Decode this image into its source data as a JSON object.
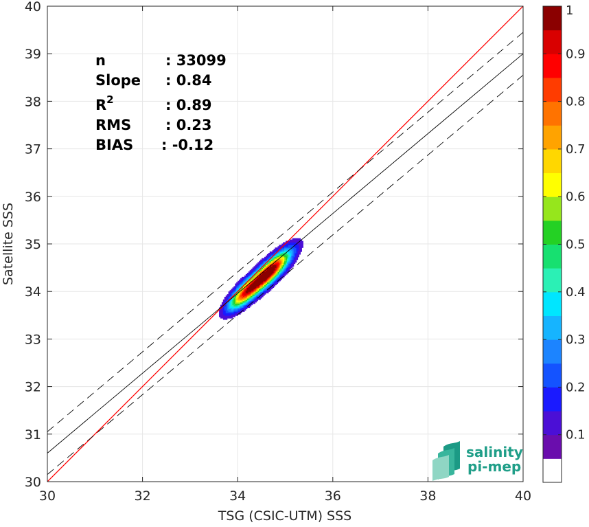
{
  "chart_data": {
    "type": "heatmap",
    "xlabel": "TSG (CSIC-UTM) SSS",
    "ylabel": "Satellite SSS",
    "xlim": [
      30,
      40
    ],
    "ylim": [
      30,
      40
    ],
    "xticks": [
      30,
      32,
      34,
      36,
      38,
      40
    ],
    "yticks": [
      30,
      31,
      32,
      33,
      34,
      35,
      36,
      37,
      38,
      39,
      40
    ],
    "grid": true,
    "stats": {
      "labels": [
        "n",
        "Slope",
        "R",
        "RMS",
        "BIAS"
      ],
      "superscript": "2",
      "values": [
        ": 33099",
        ": 0.84",
        ": 0.89",
        ": 0.23",
        ": -0.12"
      ]
    },
    "lines": {
      "one_to_one": {
        "slope": 1,
        "intercept": 0,
        "color": "#ff0000"
      },
      "regression": {
        "slope": 0.84,
        "intercept": 5.4
      },
      "band_offset": 0.45
    },
    "density_peaks": [
      {
        "x": 34.67,
        "y": 34.42,
        "weight": 1.0,
        "sx": 0.17,
        "sy": 0.17
      },
      {
        "x": 34.15,
        "y": 33.97,
        "weight": 0.7,
        "sx": 0.16,
        "sy": 0.14
      }
    ],
    "colorbar": {
      "ticks": [
        "0.1",
        "0.2",
        "0.3",
        "0.4",
        "0.5",
        "0.6",
        "0.7",
        "0.8",
        "0.9",
        "1"
      ],
      "colors": [
        "#ffffff",
        "#6a0dad",
        "#4b0fd6",
        "#1a1aff",
        "#1453ff",
        "#1c84ff",
        "#16b4ff",
        "#00e6ff",
        "#2bf0b5",
        "#17e070",
        "#24d124",
        "#96e61c",
        "#ffff00",
        "#ffd700",
        "#ffa300",
        "#ff7300",
        "#ff3c00",
        "#ff0000",
        "#d90000",
        "#8b0000"
      ]
    },
    "logo": {
      "line1": "salinity",
      "line2": "pi-mep"
    }
  }
}
